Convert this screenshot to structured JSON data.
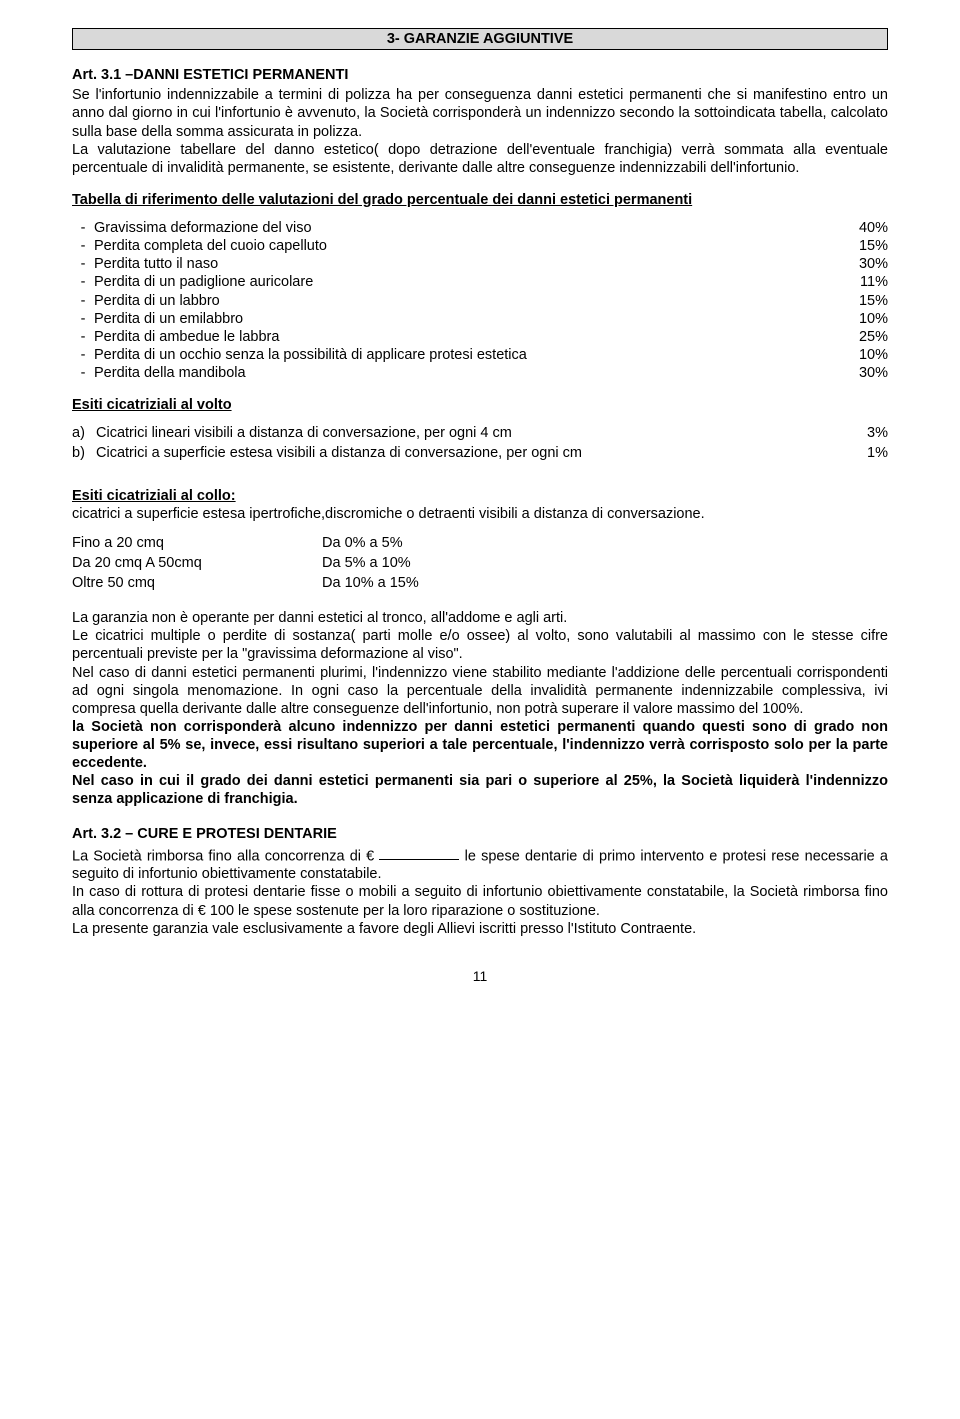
{
  "header": "3- GARANZIE AGGIUNTIVE",
  "art31_title": "Art. 3.1 –DANNI ESTETICI PERMANENTI",
  "art31_p1": "Se l'infortunio indennizzabile a termini di polizza ha per conseguenza danni estetici permanenti che si manifestino entro un anno dal giorno in cui l'infortunio è avvenuto, la Società corrisponderà un indennizzo secondo la sottoindicata tabella, calcolato sulla base della somma assicurata in polizza.",
  "art31_p2": "La valutazione tabellare del danno estetico( dopo detrazione dell'eventuale franchigia) verrà sommata alla eventuale percentuale di invalidità permanente, se esistente, derivante dalle altre conseguenze indennizzabili dell'infortunio.",
  "tab_title": "Tabella di riferimento delle valutazioni del grado percentuale dei danni estetici permanenti",
  "rows": [
    {
      "label": "Gravissima  deformazione del viso",
      "pct": "40%"
    },
    {
      "label": "Perdita completa del cuoio capelluto",
      "pct": "15%"
    },
    {
      "label": "Perdita tutto il naso",
      "pct": "30%"
    },
    {
      "label": "Perdita di un padiglione auricolare",
      "pct": "11%"
    },
    {
      "label": "Perdita di un labbro",
      "pct": "15%"
    },
    {
      "label": "Perdita di un emilabbro",
      "pct": "10%"
    },
    {
      "label": "Perdita di ambedue le labbra",
      "pct": "25%"
    },
    {
      "label": "Perdita di un occhio senza la possibilità di applicare protesi estetica",
      "pct": "10%"
    },
    {
      "label": "Perdita della mandibola",
      "pct": "30%"
    }
  ],
  "esiti_volto_title": "Esiti cicatriziali al volto",
  "letters": [
    {
      "letter": "a)",
      "txt": "Cicatrici lineari visibili a distanza di conversazione, per ogni 4 cm",
      "pct": "3%"
    },
    {
      "letter": "b)",
      "txt": "Cicatrici a superficie estesa visibili a distanza di conversazione, per ogni cm",
      "pct": "1%"
    }
  ],
  "esiti_collo_title": "Esiti cicatriziali al collo:",
  "esiti_collo_txt": "cicatrici a superficie estesa ipertrofiche,discromiche o detraenti visibili a distanza di conversazione.",
  "ranges": [
    {
      "c1": "Fino a 20 cmq",
      "c2": "Da 0% a 5%"
    },
    {
      "c1": "Da 20 cmq A 50cmq",
      "c2": "Da 5% a 10%"
    },
    {
      "c1": "Oltre 50 cmq",
      "c2": "Da 10% a 15%"
    }
  ],
  "gar_p1": "La garanzia non è operante per danni estetici al tronco, all'addome e agli arti.",
  "gar_p2": "Le cicatrici multiple o perdite di sostanza( parti molle e/o ossee) al volto, sono valutabili al massimo con le stesse cifre percentuali previste per la \"gravissima deformazione al viso\".",
  "gar_p3": "Nel caso di danni estetici permanenti plurimi, l'indennizzo viene stabilito mediante l'addizione delle percentuali corrispondenti ad ogni singola menomazione. In ogni caso la percentuale della invalidità permanente indennizzabile complessiva, ivi compresa quella derivante dalle altre conseguenze dell'infortunio, non potrà superare il valore massimo del 100%.",
  "gar_b1": "la Società non corrisponderà alcuno indennizzo per danni estetici permanenti quando questi sono di grado non superiore al 5% se, invece, essi risultano superiori a tale percentuale, l'indennizzo verrà corrisposto solo per la parte eccedente.",
  "gar_b2": "Nel caso in cui il grado dei danni estetici permanenti sia pari o superiore al 25%, la Società liquiderà l'indennizzo senza applicazione di franchigia.",
  "art32_title": "Art. 3.2 – CURE E PROTESI DENTARIE",
  "art32_p1a": "La Società rimborsa fino alla concorrenza di € ",
  "art32_p1b": " le spese dentarie di primo intervento e protesi rese necessarie a seguito di infortunio obiettivamente constatabile.",
  "art32_p2": "In caso di rottura di protesi dentarie fisse o mobili a seguito di infortunio obiettivamente constatabile, la Società rimborsa fino alla concorrenza di € 100 le spese sostenute per la loro riparazione o sostituzione.",
  "art32_p3": "La presente garanzia vale esclusivamente a favore degli Allievi iscritti presso l'Istituto Contraente.",
  "pagenum": "11"
}
